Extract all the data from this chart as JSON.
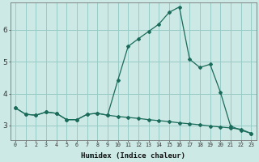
{
  "xlabel": "Humidex (Indice chaleur)",
  "background_color": "#cce9e5",
  "grid_color": "#99ccc7",
  "line_color": "#1a6b5a",
  "xlim_min": -0.5,
  "xlim_max": 23.5,
  "ylim_min": 2.55,
  "ylim_max": 6.85,
  "yticks": [
    3,
    4,
    5,
    6
  ],
  "xticks": [
    0,
    1,
    2,
    3,
    4,
    5,
    6,
    7,
    8,
    9,
    10,
    11,
    12,
    13,
    14,
    15,
    16,
    17,
    18,
    19,
    20,
    21,
    22,
    23
  ],
  "curve1_x": [
    0,
    1,
    2,
    3,
    4,
    5,
    6,
    7,
    8,
    9,
    10,
    11,
    12,
    13,
    14,
    15,
    16,
    17,
    18,
    19,
    20,
    21,
    22,
    23
  ],
  "curve1_y": [
    3.55,
    3.35,
    3.32,
    3.42,
    3.38,
    3.18,
    3.18,
    3.35,
    3.38,
    3.32,
    4.42,
    5.48,
    5.72,
    5.95,
    6.18,
    6.55,
    6.72,
    5.08,
    4.82,
    4.92,
    4.05,
    2.98,
    2.85,
    2.75
  ],
  "curve2_x": [
    0,
    1,
    2,
    3,
    4,
    5,
    6,
    7,
    8,
    9,
    10,
    11,
    12,
    13,
    14,
    15,
    16,
    17,
    18,
    19,
    20,
    21,
    22,
    23
  ],
  "curve2_y": [
    3.55,
    3.35,
    3.32,
    3.42,
    3.38,
    3.18,
    3.18,
    3.35,
    3.38,
    3.32,
    3.28,
    3.25,
    3.22,
    3.18,
    3.15,
    3.12,
    3.08,
    3.05,
    3.02,
    2.98,
    2.95,
    2.92,
    2.88,
    2.75
  ]
}
